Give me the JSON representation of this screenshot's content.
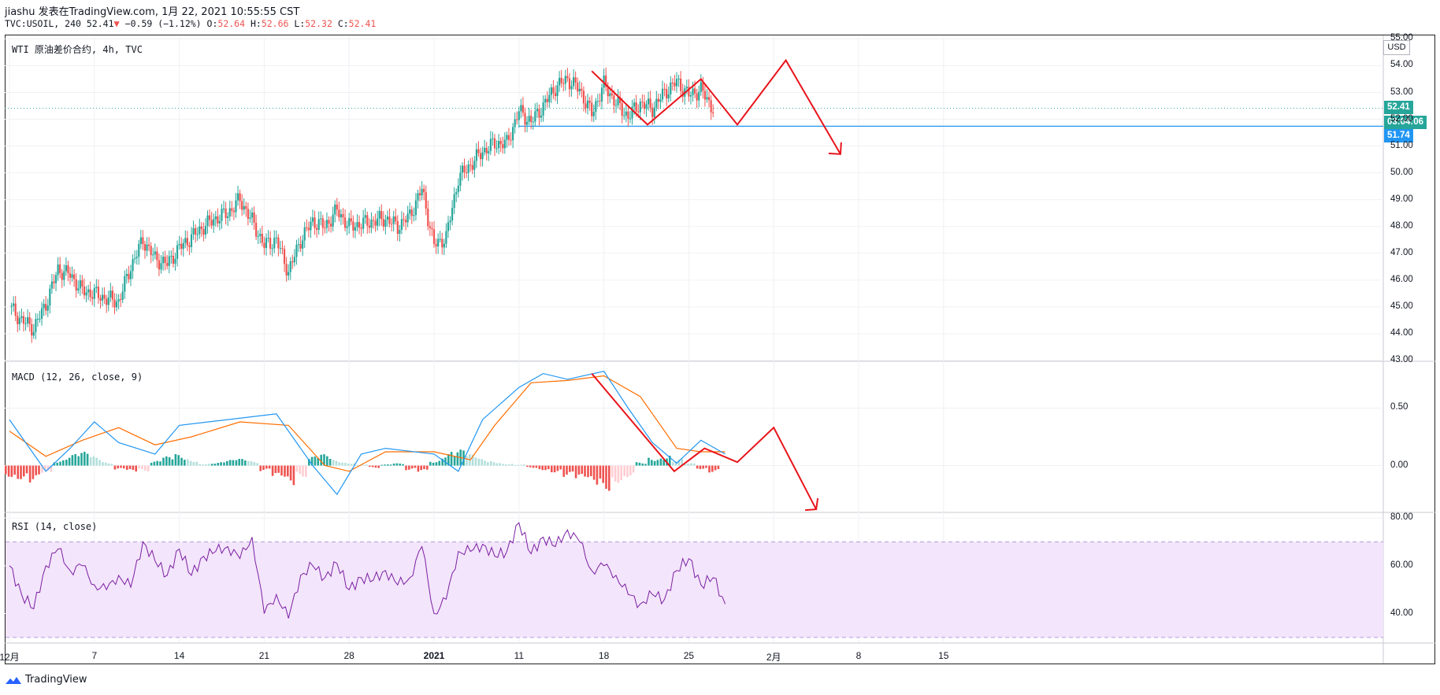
{
  "header": {
    "line1": "jiashu 发表在TradingView.com, 1月 22, 2021 10:55:55 CST",
    "symbol_prefix": "TVC:USOIL, 240",
    "last": "52.41",
    "change": "−0.59 (−1.12%)",
    "o_label": "O:",
    "o": "52.64",
    "h_label": "H:",
    "h": "52.66",
    "l_label": "L:",
    "l": "52.32",
    "c_label": "C:",
    "c": "52.41"
  },
  "brand": "TradingView",
  "currency": "USD",
  "colors": {
    "up": "#26a69a",
    "down": "#ef5350",
    "macd": "#2196f3",
    "signal": "#ff6d00",
    "rsi": "#7b1fa2",
    "rsi_band": "#f3e5fb",
    "drawing": "#e8141b",
    "hline": "#2196f3"
  },
  "chart_data": [
    {
      "type": "candlestick",
      "title": "WTI 原油差价合约, 4h, TVC",
      "y_ticks": [
        "43.00",
        "44.00",
        "45.00",
        "46.00",
        "47.00",
        "48.00",
        "49.00",
        "50.00",
        "51.00",
        "52.00",
        "53.00",
        "54.00",
        "55.00"
      ],
      "ylim": [
        43,
        55.1
      ],
      "last_price_label": "52.41",
      "countdown_label": "03:04:06",
      "horizontal_line_label": "51.74",
      "horizontal_line_value": 51.74,
      "close_path": [
        {
          "x": 0,
          "y": 45.0
        },
        {
          "x": 1,
          "y": 44.5
        },
        {
          "x": 2,
          "y": 44.2
        },
        {
          "x": 3,
          "y": 45.1
        },
        {
          "x": 4,
          "y": 46.4
        },
        {
          "x": 5,
          "y": 46.2
        },
        {
          "x": 6,
          "y": 45.6
        },
        {
          "x": 7,
          "y": 45.5
        },
        {
          "x": 8,
          "y": 45.3
        },
        {
          "x": 9,
          "y": 45.2
        },
        {
          "x": 10,
          "y": 46.5
        },
        {
          "x": 11,
          "y": 47.5
        },
        {
          "x": 12,
          "y": 46.8
        },
        {
          "x": 13,
          "y": 46.6
        },
        {
          "x": 14,
          "y": 47.2
        },
        {
          "x": 15,
          "y": 47.6
        },
        {
          "x": 16,
          "y": 48.0
        },
        {
          "x": 17,
          "y": 48.3
        },
        {
          "x": 18,
          "y": 48.5
        },
        {
          "x": 19,
          "y": 49.0
        },
        {
          "x": 20,
          "y": 48.2
        },
        {
          "x": 21,
          "y": 47.3
        },
        {
          "x": 22,
          "y": 47.5
        },
        {
          "x": 23,
          "y": 46.3
        },
        {
          "x": 24,
          "y": 47.5
        },
        {
          "x": 25,
          "y": 48.2
        },
        {
          "x": 26,
          "y": 48.0
        },
        {
          "x": 27,
          "y": 48.6
        },
        {
          "x": 28,
          "y": 48.0
        },
        {
          "x": 29,
          "y": 48.1
        },
        {
          "x": 30,
          "y": 48.2
        },
        {
          "x": 31,
          "y": 48.3
        },
        {
          "x": 32,
          "y": 48.0
        },
        {
          "x": 33,
          "y": 48.4
        },
        {
          "x": 34,
          "y": 49.4
        },
        {
          "x": 35,
          "y": 47.3
        },
        {
          "x": 36,
          "y": 47.6
        },
        {
          "x": 37,
          "y": 49.8
        },
        {
          "x": 38,
          "y": 50.3
        },
        {
          "x": 39,
          "y": 50.8
        },
        {
          "x": 40,
          "y": 51.1
        },
        {
          "x": 41,
          "y": 51.1
        },
        {
          "x": 42,
          "y": 52.3
        },
        {
          "x": 43,
          "y": 51.9
        },
        {
          "x": 44,
          "y": 52.5
        },
        {
          "x": 45,
          "y": 53.2
        },
        {
          "x": 46,
          "y": 53.5
        },
        {
          "x": 47,
          "y": 53.1
        },
        {
          "x": 48,
          "y": 52.2
        },
        {
          "x": 49,
          "y": 53.3
        },
        {
          "x": 50,
          "y": 52.6
        },
        {
          "x": 51,
          "y": 52.1
        },
        {
          "x": 52,
          "y": 52.6
        },
        {
          "x": 53,
          "y": 52.4
        },
        {
          "x": 54,
          "y": 53.0
        },
        {
          "x": 55,
          "y": 53.4
        },
        {
          "x": 56,
          "y": 52.9
        },
        {
          "x": 57,
          "y": 53.1
        },
        {
          "x": 58,
          "y": 52.4
        }
      ],
      "drawing_path": [
        {
          "x": 48,
          "y": 53.8
        },
        {
          "x": 52.6,
          "y": 51.8
        },
        {
          "x": 57,
          "y": 53.5
        },
        {
          "x": 60,
          "y": 51.8
        },
        {
          "x": 64,
          "y": 54.2
        },
        {
          "x": 68.5,
          "y": 50.7
        }
      ]
    },
    {
      "type": "line",
      "title": "MACD (12, 26, close, 9)",
      "y_ticks": [
        "0.00",
        "0.50"
      ],
      "ylim": [
        -0.4,
        0.9
      ],
      "macd_path": [
        {
          "x": 0,
          "y": 0.4
        },
        {
          "x": 2,
          "y": 0.1
        },
        {
          "x": 3,
          "y": -0.05
        },
        {
          "x": 5,
          "y": 0.15
        },
        {
          "x": 7,
          "y": 0.38
        },
        {
          "x": 9,
          "y": 0.2
        },
        {
          "x": 12,
          "y": 0.1
        },
        {
          "x": 14,
          "y": 0.35
        },
        {
          "x": 18,
          "y": 0.4
        },
        {
          "x": 22,
          "y": 0.45
        },
        {
          "x": 25,
          "y": 0.0
        },
        {
          "x": 27,
          "y": -0.25
        },
        {
          "x": 29,
          "y": 0.1
        },
        {
          "x": 31,
          "y": 0.15
        },
        {
          "x": 35,
          "y": 0.1
        },
        {
          "x": 37,
          "y": -0.05
        },
        {
          "x": 39,
          "y": 0.4
        },
        {
          "x": 42,
          "y": 0.68
        },
        {
          "x": 44,
          "y": 0.8
        },
        {
          "x": 46,
          "y": 0.75
        },
        {
          "x": 49,
          "y": 0.82
        },
        {
          "x": 51,
          "y": 0.5
        },
        {
          "x": 53,
          "y": 0.2
        },
        {
          "x": 55,
          "y": 0.02
        },
        {
          "x": 57,
          "y": 0.22
        },
        {
          "x": 59,
          "y": 0.1
        }
      ],
      "signal_path": [
        {
          "x": 0,
          "y": 0.3
        },
        {
          "x": 3,
          "y": 0.08
        },
        {
          "x": 6,
          "y": 0.22
        },
        {
          "x": 9,
          "y": 0.33
        },
        {
          "x": 12,
          "y": 0.18
        },
        {
          "x": 15,
          "y": 0.25
        },
        {
          "x": 19,
          "y": 0.38
        },
        {
          "x": 23,
          "y": 0.35
        },
        {
          "x": 26,
          "y": 0.0
        },
        {
          "x": 28,
          "y": -0.05
        },
        {
          "x": 31,
          "y": 0.12
        },
        {
          "x": 35,
          "y": 0.12
        },
        {
          "x": 38,
          "y": 0.05
        },
        {
          "x": 40,
          "y": 0.35
        },
        {
          "x": 43,
          "y": 0.72
        },
        {
          "x": 46,
          "y": 0.74
        },
        {
          "x": 49,
          "y": 0.78
        },
        {
          "x": 52,
          "y": 0.6
        },
        {
          "x": 55,
          "y": 0.15
        },
        {
          "x": 57,
          "y": 0.12
        },
        {
          "x": 59,
          "y": 0.12
        }
      ],
      "histogram": [
        -0.1,
        -0.12,
        -0.15,
        -0.08,
        0.05,
        0.1,
        0.12,
        0.08,
        0.03,
        -0.04,
        -0.06,
        -0.05,
        0.04,
        0.08,
        0.1,
        0.06,
        0.02,
        0.03,
        0.05,
        0.06,
        0.04,
        -0.05,
        -0.12,
        -0.18,
        -0.1,
        0.08,
        0.1,
        0.05,
        0.03,
        0.01,
        -0.02,
        0.01,
        0.02,
        -0.04,
        -0.06,
        0.05,
        0.12,
        0.14,
        0.1,
        0.06,
        0.04,
        0.02,
        0.01,
        -0.02,
        -0.04,
        -0.06,
        -0.1,
        -0.14,
        -0.18,
        -0.22,
        -0.15,
        -0.1,
        0.03,
        0.08,
        0.1,
        0.06,
        0.02,
        -0.03,
        -0.06
      ],
      "drawing_path": [
        {
          "x": 48,
          "y": 0.8
        },
        {
          "x": 54.8,
          "y": -0.05
        },
        {
          "x": 57.3,
          "y": 0.15
        },
        {
          "x": 60,
          "y": 0.03
        },
        {
          "x": 63,
          "y": 0.33
        },
        {
          "x": 66.5,
          "y": -0.38
        }
      ]
    },
    {
      "type": "line",
      "title": "RSI (14, close)",
      "y_ticks": [
        "40.00",
        "60.00",
        "80.00"
      ],
      "ylim": [
        28,
        82
      ],
      "band": [
        30,
        70
      ],
      "rsi_path": [
        {
          "x": 0,
          "y": 60
        },
        {
          "x": 1,
          "y": 48
        },
        {
          "x": 2,
          "y": 42
        },
        {
          "x": 3,
          "y": 60
        },
        {
          "x": 4,
          "y": 67
        },
        {
          "x": 5,
          "y": 58
        },
        {
          "x": 6,
          "y": 60
        },
        {
          "x": 7,
          "y": 52
        },
        {
          "x": 8,
          "y": 50
        },
        {
          "x": 9,
          "y": 56
        },
        {
          "x": 10,
          "y": 51
        },
        {
          "x": 11,
          "y": 70
        },
        {
          "x": 12,
          "y": 62
        },
        {
          "x": 13,
          "y": 56
        },
        {
          "x": 14,
          "y": 67
        },
        {
          "x": 15,
          "y": 56
        },
        {
          "x": 16,
          "y": 64
        },
        {
          "x": 17,
          "y": 66
        },
        {
          "x": 18,
          "y": 68
        },
        {
          "x": 19,
          "y": 63
        },
        {
          "x": 20,
          "y": 72
        },
        {
          "x": 21,
          "y": 40
        },
        {
          "x": 22,
          "y": 48
        },
        {
          "x": 23,
          "y": 38
        },
        {
          "x": 24,
          "y": 56
        },
        {
          "x": 25,
          "y": 60
        },
        {
          "x": 26,
          "y": 55
        },
        {
          "x": 27,
          "y": 61
        },
        {
          "x": 28,
          "y": 50
        },
        {
          "x": 29,
          "y": 55
        },
        {
          "x": 30,
          "y": 54
        },
        {
          "x": 31,
          "y": 58
        },
        {
          "x": 32,
          "y": 52
        },
        {
          "x": 33,
          "y": 55
        },
        {
          "x": 34,
          "y": 68
        },
        {
          "x": 35,
          "y": 40
        },
        {
          "x": 36,
          "y": 46
        },
        {
          "x": 37,
          "y": 66
        },
        {
          "x": 38,
          "y": 66
        },
        {
          "x": 39,
          "y": 69
        },
        {
          "x": 40,
          "y": 64
        },
        {
          "x": 41,
          "y": 66
        },
        {
          "x": 42,
          "y": 78
        },
        {
          "x": 43,
          "y": 65
        },
        {
          "x": 44,
          "y": 72
        },
        {
          "x": 45,
          "y": 68
        },
        {
          "x": 46,
          "y": 75
        },
        {
          "x": 47,
          "y": 70
        },
        {
          "x": 48,
          "y": 58
        },
        {
          "x": 49,
          "y": 60
        },
        {
          "x": 50,
          "y": 56
        },
        {
          "x": 51,
          "y": 48
        },
        {
          "x": 52,
          "y": 44
        },
        {
          "x": 53,
          "y": 48
        },
        {
          "x": 54,
          "y": 46
        },
        {
          "x": 55,
          "y": 58
        },
        {
          "x": 56,
          "y": 63
        },
        {
          "x": 57,
          "y": 52
        },
        {
          "x": 58,
          "y": 55
        },
        {
          "x": 59,
          "y": 44
        }
      ]
    }
  ],
  "x_ticks": [
    {
      "label": "12月",
      "x": 0,
      "bold": false
    },
    {
      "label": "7",
      "x": 7,
      "bold": false
    },
    {
      "label": "14",
      "x": 14,
      "bold": false
    },
    {
      "label": "21",
      "x": 21,
      "bold": false
    },
    {
      "label": "28",
      "x": 28,
      "bold": false
    },
    {
      "label": "2021",
      "x": 35,
      "bold": true
    },
    {
      "label": "11",
      "x": 42,
      "bold": false
    },
    {
      "label": "18",
      "x": 49,
      "bold": false
    },
    {
      "label": "25",
      "x": 56,
      "bold": false
    },
    {
      "label": "2月",
      "x": 63,
      "bold": false
    },
    {
      "label": "8",
      "x": 70,
      "bold": false
    },
    {
      "label": "15",
      "x": 77,
      "bold": false
    }
  ]
}
